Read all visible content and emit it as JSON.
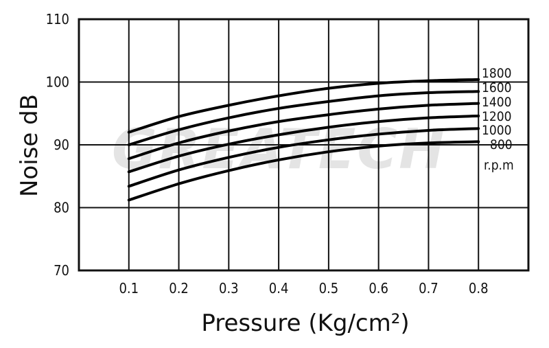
{
  "watermark": "GREATECH",
  "chart_data": {
    "type": "line",
    "xlabel": "Pressure (Kg/cm²)",
    "ylabel": "Noise dB",
    "x_ticks": [
      "0.1",
      "0.2",
      "0.3",
      "0.4",
      "0.5",
      "0.6",
      "0.7",
      "0.8"
    ],
    "y_ticks": [
      "70",
      "80",
      "90",
      "100",
      "110"
    ],
    "xlim": [
      0,
      0.9
    ],
    "ylim": [
      70,
      110
    ],
    "grid": true,
    "unit_label": "r.p.m",
    "x": [
      0.1,
      0.2,
      0.3,
      0.4,
      0.5,
      0.6,
      0.7,
      0.8
    ],
    "series": [
      {
        "name": "1800",
        "values": [
          92.0,
          94.5,
          96.3,
          97.8,
          99.0,
          99.8,
          100.2,
          100.4
        ]
      },
      {
        "name": "1600",
        "values": [
          90.0,
          92.4,
          94.3,
          95.8,
          96.9,
          97.8,
          98.3,
          98.5
        ]
      },
      {
        "name": "1400",
        "values": [
          87.8,
          90.3,
          92.2,
          93.7,
          94.8,
          95.7,
          96.3,
          96.6
        ]
      },
      {
        "name": "1200",
        "values": [
          85.7,
          88.2,
          90.1,
          91.6,
          92.8,
          93.7,
          94.3,
          94.6
        ]
      },
      {
        "name": "1000",
        "values": [
          83.4,
          86.0,
          88.0,
          89.6,
          90.8,
          91.7,
          92.3,
          92.6
        ]
      },
      {
        "name": "800",
        "values": [
          81.2,
          83.8,
          85.9,
          87.6,
          88.9,
          89.8,
          90.3,
          90.5
        ]
      }
    ]
  }
}
